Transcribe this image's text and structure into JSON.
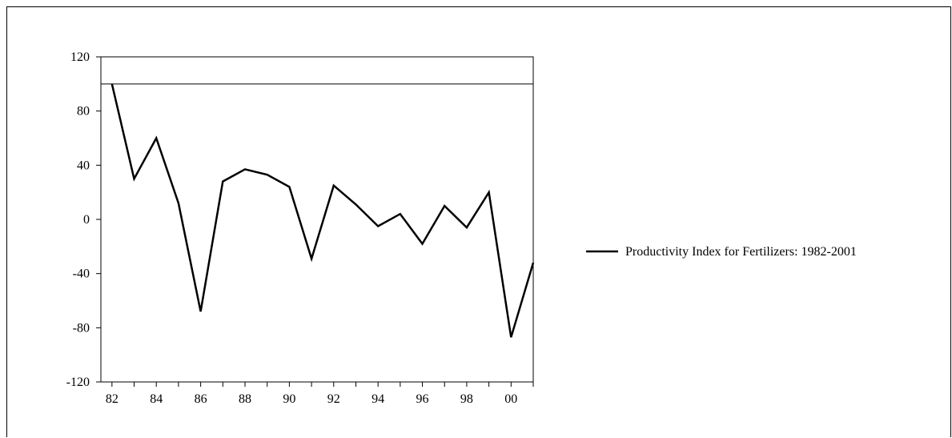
{
  "chart_data": {
    "type": "line",
    "title": "",
    "xlabel": "",
    "ylabel": "",
    "x": [
      1982,
      1983,
      1984,
      1985,
      1986,
      1987,
      1988,
      1989,
      1990,
      1991,
      1992,
      1993,
      1994,
      1995,
      1996,
      1997,
      1998,
      1999,
      2000,
      2001
    ],
    "series": [
      {
        "name": "Productivity Index for Fertilizers: 1982-2001",
        "values": [
          100,
          30,
          60,
          12,
          -68,
          28,
          37,
          33,
          24,
          -29,
          25,
          11,
          -5,
          4,
          -18,
          10,
          -6,
          20,
          -87,
          -32
        ],
        "color": "#000000"
      }
    ],
    "reference_line": 100,
    "xlim": [
      1981.5,
      2001
    ],
    "ylim": [
      -120,
      120
    ],
    "yticks": [
      120,
      80,
      40,
      0,
      -40,
      -80,
      -120
    ],
    "yticklabels": [
      "120",
      "80",
      "40",
      "0",
      "-40",
      "-80",
      "-120"
    ],
    "xticks": [
      1982,
      1984,
      1986,
      1988,
      1990,
      1992,
      1994,
      1996,
      1998,
      2000
    ],
    "xticklabels": [
      "82",
      "84",
      "86",
      "88",
      "90",
      "92",
      "94",
      "96",
      "98",
      "00"
    ],
    "grid": false,
    "legend_position": "right"
  }
}
